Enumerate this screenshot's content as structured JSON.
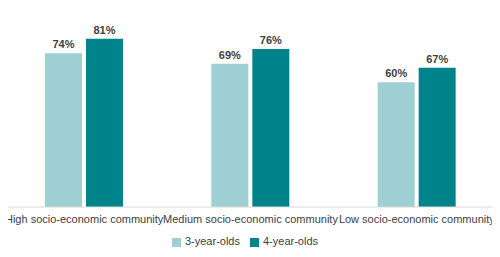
{
  "chart_data": {
    "type": "bar",
    "categories": [
      "High socio-economic community",
      "Medium socio-economic community",
      "Low socio-economic community"
    ],
    "series": [
      {
        "name": "3-year-olds",
        "color": "#9dcfd3",
        "values": [
          74,
          69,
          60
        ],
        "value_labels": [
          "74%",
          "69%",
          "60%"
        ]
      },
      {
        "name": "4-year-olds",
        "color": "#00838a",
        "values": [
          81,
          76,
          67
        ],
        "value_labels": [
          "81%",
          "76%",
          "67%"
        ]
      }
    ],
    "ylim": [
      0,
      90
    ],
    "grid": false,
    "legend": "bottom",
    "data_labels": true,
    "tick_labels": "x"
  }
}
